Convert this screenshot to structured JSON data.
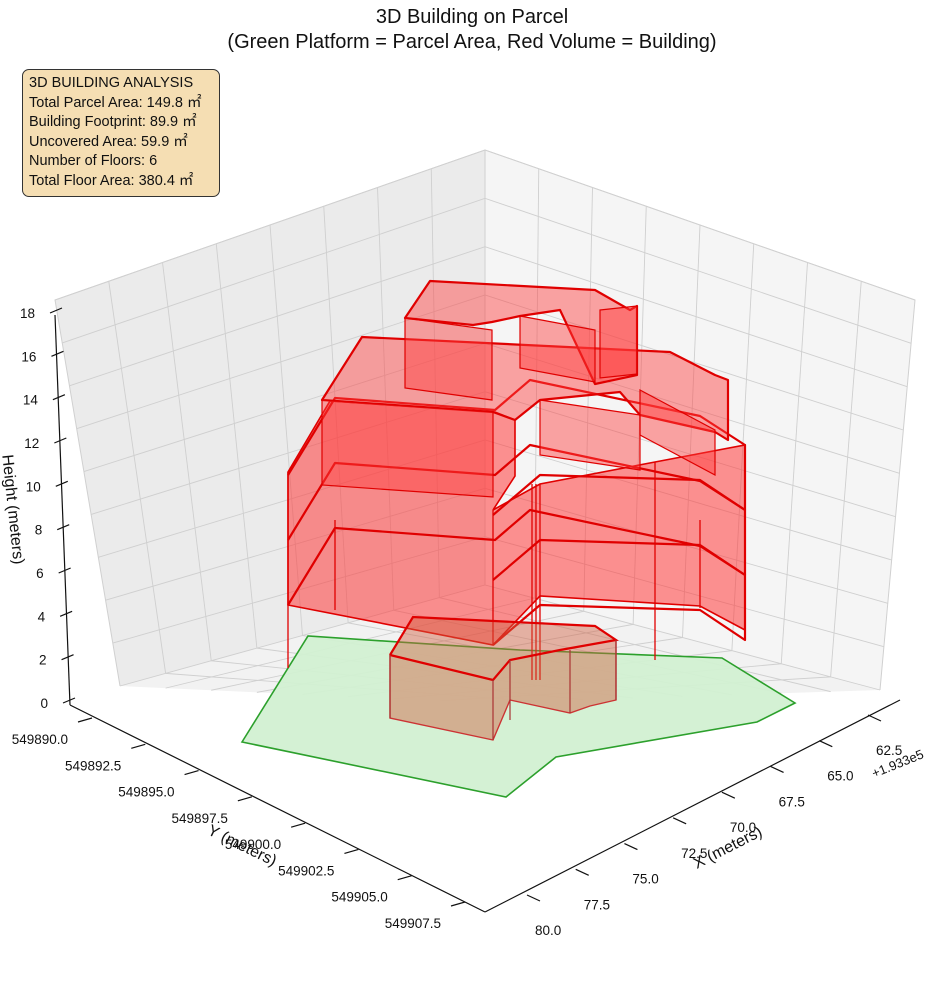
{
  "chart_data": {
    "type": "3d-polygon",
    "title_lines": [
      "3D Building on Parcel",
      "(Green Platform = Parcel Area, Red Volume = Building)"
    ],
    "info_box": [
      "3D BUILDING ANALYSIS",
      "Total Parcel Area: 149.8 ㎡",
      "Building Footprint: 89.9 ㎡",
      "Uncovered Area: 59.9 ㎡",
      "Number of Floors: 6",
      "Total Floor Area: 380.4 ㎡"
    ],
    "axes": {
      "x": {
        "label": "X (meters)",
        "offset_text": "+1.933e5",
        "ticks": [
          "62.5",
          "65.0",
          "67.5",
          "70.0",
          "72.5",
          "75.0",
          "77.5",
          "80.0"
        ]
      },
      "y": {
        "label": "Y (meters)",
        "ticks": [
          "549890.0",
          "549892.5",
          "549895.0",
          "549897.5",
          "549900.0",
          "549902.5",
          "549905.0",
          "549907.5"
        ]
      },
      "z": {
        "label": "Height (meters)",
        "ticks": [
          "0",
          "2",
          "4",
          "6",
          "8",
          "10",
          "12",
          "14",
          "16",
          "18"
        ],
        "range": [
          0,
          18
        ]
      }
    },
    "parcel": {
      "color": "#2ca02c",
      "fill": "#d2f0d2",
      "height": 0
    },
    "building": {
      "color": "#e00000",
      "fill": "#ff3b3b",
      "floors": 6,
      "floor_height_m": 3
    },
    "grid": true
  }
}
